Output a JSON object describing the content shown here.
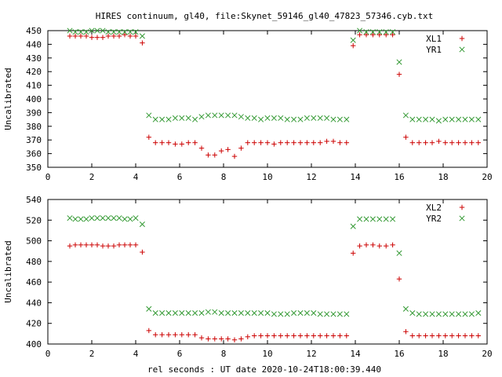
{
  "title": "HIRES continuum, gl40, file:Skynet_59146_gl40_47823_57346.cyb.txt",
  "xlabel": "rel seconds : UT date 2020-10-24T18:00:39.440",
  "colors": {
    "red": "#cc0000",
    "green": "#339933",
    "axis": "#000000"
  },
  "chart_data": [
    {
      "type": "scatter",
      "ylabel": "Uncalibrated",
      "xlim": [
        0,
        20
      ],
      "ylim": [
        350,
        450
      ],
      "xticks": [
        0,
        2,
        4,
        6,
        8,
        10,
        12,
        14,
        16,
        18,
        20
      ],
      "yticks": [
        350,
        360,
        370,
        380,
        390,
        400,
        410,
        420,
        430,
        440,
        450
      ],
      "legend_position": "top-right",
      "series": [
        {
          "name": "XL1",
          "marker": "plus",
          "color": "#cc0000",
          "x": [
            1.0,
            1.25,
            1.5,
            1.75,
            2.0,
            2.25,
            2.5,
            2.75,
            3.0,
            3.25,
            3.5,
            3.75,
            4.0,
            4.3,
            4.6,
            4.9,
            5.2,
            5.5,
            5.8,
            6.1,
            6.4,
            6.7,
            7.0,
            7.3,
            7.6,
            7.9,
            8.2,
            8.5,
            8.8,
            9.1,
            9.4,
            9.7,
            10.0,
            10.3,
            10.6,
            10.9,
            11.2,
            11.5,
            11.8,
            12.1,
            12.4,
            12.7,
            13.0,
            13.3,
            13.6,
            13.9,
            14.2,
            14.5,
            14.8,
            15.1,
            15.4,
            15.7,
            16.0,
            16.3,
            16.6,
            16.9,
            17.2,
            17.5,
            17.8,
            18.1,
            18.4,
            18.7,
            19.0,
            19.3,
            19.6
          ],
          "y": [
            446,
            446,
            446,
            446,
            445,
            445,
            445,
            446,
            446,
            446,
            447,
            446,
            446,
            441,
            372,
            368,
            368,
            368,
            367,
            367,
            368,
            368,
            364,
            359,
            359,
            362,
            363,
            358,
            364,
            368,
            368,
            368,
            368,
            367,
            368,
            368,
            368,
            368,
            368,
            368,
            368,
            369,
            369,
            368,
            368,
            439,
            447,
            447,
            447,
            447,
            447,
            447,
            418,
            372,
            368,
            368,
            368,
            368,
            369,
            368,
            368,
            368,
            368,
            368,
            368
          ]
        },
        {
          "name": "YR1",
          "marker": "cross",
          "color": "#339933",
          "x": [
            1.0,
            1.25,
            1.5,
            1.75,
            2.0,
            2.25,
            2.5,
            2.75,
            3.0,
            3.25,
            3.5,
            3.75,
            4.0,
            4.3,
            4.6,
            4.9,
            5.2,
            5.5,
            5.8,
            6.1,
            6.4,
            6.7,
            7.0,
            7.3,
            7.6,
            7.9,
            8.2,
            8.5,
            8.8,
            9.1,
            9.4,
            9.7,
            10.0,
            10.3,
            10.6,
            10.9,
            11.2,
            11.5,
            11.8,
            12.1,
            12.4,
            12.7,
            13.0,
            13.3,
            13.6,
            13.9,
            14.2,
            14.5,
            14.8,
            15.1,
            15.4,
            15.7,
            16.0,
            16.3,
            16.6,
            16.9,
            17.2,
            17.5,
            17.8,
            18.1,
            18.4,
            18.7,
            19.0,
            19.3,
            19.6
          ],
          "y": [
            450,
            449,
            449,
            449,
            450,
            450,
            450,
            449,
            449,
            449,
            449,
            449,
            449,
            446,
            388,
            385,
            385,
            385,
            386,
            386,
            386,
            385,
            387,
            388,
            388,
            388,
            388,
            388,
            387,
            386,
            386,
            385,
            386,
            386,
            386,
            385,
            385,
            385,
            386,
            386,
            386,
            386,
            385,
            385,
            385,
            443,
            450,
            449,
            449,
            449,
            449,
            449,
            427,
            388,
            385,
            385,
            385,
            385,
            384,
            385,
            385,
            385,
            385,
            385,
            385
          ]
        }
      ]
    },
    {
      "type": "scatter",
      "ylabel": "Uncalibrated",
      "xlim": [
        0,
        20
      ],
      "ylim": [
        400,
        540
      ],
      "xticks": [
        0,
        2,
        4,
        6,
        8,
        10,
        12,
        14,
        16,
        18,
        20
      ],
      "yticks": [
        400,
        420,
        440,
        460,
        480,
        500,
        520,
        540
      ],
      "legend_position": "top-right",
      "series": [
        {
          "name": "XL2",
          "marker": "plus",
          "color": "#cc0000",
          "x": [
            1.0,
            1.25,
            1.5,
            1.75,
            2.0,
            2.25,
            2.5,
            2.75,
            3.0,
            3.25,
            3.5,
            3.75,
            4.0,
            4.3,
            4.6,
            4.9,
            5.2,
            5.5,
            5.8,
            6.1,
            6.4,
            6.7,
            7.0,
            7.3,
            7.6,
            7.9,
            8.2,
            8.5,
            8.8,
            9.1,
            9.4,
            9.7,
            10.0,
            10.3,
            10.6,
            10.9,
            11.2,
            11.5,
            11.8,
            12.1,
            12.4,
            12.7,
            13.0,
            13.3,
            13.6,
            13.9,
            14.2,
            14.5,
            14.8,
            15.1,
            15.4,
            15.7,
            16.0,
            16.3,
            16.6,
            16.9,
            17.2,
            17.5,
            17.8,
            18.1,
            18.4,
            18.7,
            19.0,
            19.3,
            19.6
          ],
          "y": [
            495,
            496,
            496,
            496,
            496,
            496,
            495,
            495,
            495,
            496,
            496,
            496,
            496,
            489,
            413,
            409,
            409,
            409,
            409,
            409,
            409,
            409,
            406,
            405,
            405,
            405,
            405,
            404,
            405,
            407,
            408,
            408,
            408,
            408,
            408,
            408,
            408,
            408,
            408,
            408,
            408,
            408,
            408,
            408,
            408,
            488,
            495,
            496,
            496,
            495,
            495,
            496,
            463,
            412,
            408,
            408,
            408,
            408,
            408,
            408,
            408,
            408,
            408,
            408,
            408
          ]
        },
        {
          "name": "YR2",
          "marker": "cross",
          "color": "#339933",
          "x": [
            1.0,
            1.25,
            1.5,
            1.75,
            2.0,
            2.25,
            2.5,
            2.75,
            3.0,
            3.25,
            3.5,
            3.75,
            4.0,
            4.3,
            4.6,
            4.9,
            5.2,
            5.5,
            5.8,
            6.1,
            6.4,
            6.7,
            7.0,
            7.3,
            7.6,
            7.9,
            8.2,
            8.5,
            8.8,
            9.1,
            9.4,
            9.7,
            10.0,
            10.3,
            10.6,
            10.9,
            11.2,
            11.5,
            11.8,
            12.1,
            12.4,
            12.7,
            13.0,
            13.3,
            13.6,
            13.9,
            14.2,
            14.5,
            14.8,
            15.1,
            15.4,
            15.7,
            16.0,
            16.3,
            16.6,
            16.9,
            17.2,
            17.5,
            17.8,
            18.1,
            18.4,
            18.7,
            19.0,
            19.3,
            19.6
          ],
          "y": [
            522,
            521,
            521,
            521,
            522,
            522,
            522,
            522,
            522,
            522,
            521,
            521,
            522,
            516,
            434,
            430,
            430,
            430,
            430,
            430,
            430,
            430,
            430,
            431,
            431,
            430,
            430,
            430,
            430,
            430,
            430,
            430,
            430,
            429,
            429,
            429,
            430,
            430,
            430,
            430,
            429,
            429,
            429,
            429,
            429,
            514,
            521,
            521,
            521,
            521,
            521,
            521,
            488,
            434,
            430,
            429,
            429,
            429,
            429,
            429,
            429,
            429,
            429,
            429,
            430
          ]
        }
      ]
    }
  ]
}
